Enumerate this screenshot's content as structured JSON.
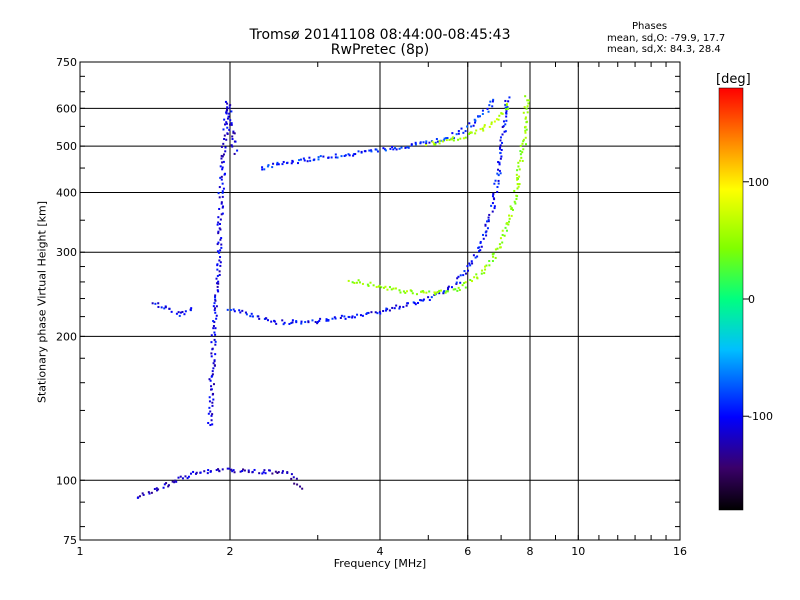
{
  "header": {
    "title_line1": "Tromsø 20141108 08:44:00-08:45:43",
    "title_line2": "RwPretec (8p)",
    "phases_title": "Phases",
    "phases_o": "mean, sd,O: -79.9, 17.7",
    "phases_x": "mean, sd,X: 84.3, 28.4"
  },
  "colorbar": {
    "label": "[deg]",
    "ticks": [
      "100",
      "0",
      "-100"
    ],
    "tick_values": [
      100,
      0,
      -100
    ],
    "range": [
      -180,
      180
    ]
  },
  "chart_data": {
    "type": "scatter",
    "title": "Tromsø 20141108 08:44:00-08:45:43 RwPretec (8p)",
    "xlabel": "Frequency [MHz]",
    "ylabel": "Stationary phase Virtual Height [km]",
    "x_scale": "log",
    "y_scale": "log",
    "xlim": [
      1,
      16
    ],
    "ylim": [
      75,
      750
    ],
    "x_ticks": [
      1,
      2,
      4,
      6,
      8,
      10,
      16
    ],
    "x_tick_labels": [
      "1",
      "2",
      "4",
      "6",
      "8",
      "10",
      "16"
    ],
    "y_ticks": [
      75,
      100,
      200,
      300,
      400,
      500,
      600,
      750
    ],
    "y_tick_labels": [
      "75",
      "100",
      "200",
      "300",
      "400",
      "500",
      "600",
      "750"
    ],
    "grid": true,
    "color_by": "phase [deg]",
    "series": [
      {
        "trace": "vertical band near 1.9 MHz",
        "x": [
          1.82,
          1.85,
          1.88,
          1.9,
          1.92,
          1.95,
          1.98,
          2.05
        ],
        "y": [
          130,
          180,
          250,
          300,
          400,
          500,
          620,
          480
        ],
        "phase": -110
      },
      {
        "trace": "low echoes 95-110 km",
        "x": [
          1.3,
          1.5,
          1.7,
          2.0,
          2.3,
          2.6,
          2.8
        ],
        "y": [
          92,
          98,
          104,
          105,
          104,
          104,
          96
        ],
        "phase": -120
      },
      {
        "trace": "E echo 1.4-1.7 MHz",
        "x": [
          1.4,
          1.5,
          1.6,
          1.7
        ],
        "y": [
          235,
          228,
          222,
          230
        ],
        "phase": -100
      },
      {
        "trace": "F2 O-mode lower",
        "x": [
          2.0,
          2.5,
          3.0,
          4.0,
          5.0,
          5.7,
          6.2,
          6.7,
          7.0,
          7.2
        ],
        "y": [
          228,
          214,
          215,
          225,
          240,
          258,
          290,
          360,
          480,
          640
        ],
        "phase": -100
      },
      {
        "trace": "F2 X-mode lower",
        "x": [
          3.5,
          4.5,
          5.2,
          5.8,
          6.4,
          7.0,
          7.5,
          7.8,
          7.9
        ],
        "y": [
          262,
          248,
          246,
          252,
          272,
          310,
          400,
          520,
          640
        ],
        "phase": 50
      },
      {
        "trace": "F2 upper trace",
        "x": [
          2.3,
          2.8,
          3.2,
          4.0,
          4.8,
          5.5,
          6.0,
          6.5,
          6.8
        ],
        "y": [
          450,
          468,
          475,
          490,
          505,
          520,
          545,
          590,
          630
        ],
        "phase": -90
      },
      {
        "trace": "F2 upper X trace",
        "x": [
          5.0,
          5.8,
          6.5,
          7.0,
          7.3
        ],
        "y": [
          505,
          520,
          545,
          580,
          620
        ],
        "phase": 60
      }
    ]
  }
}
